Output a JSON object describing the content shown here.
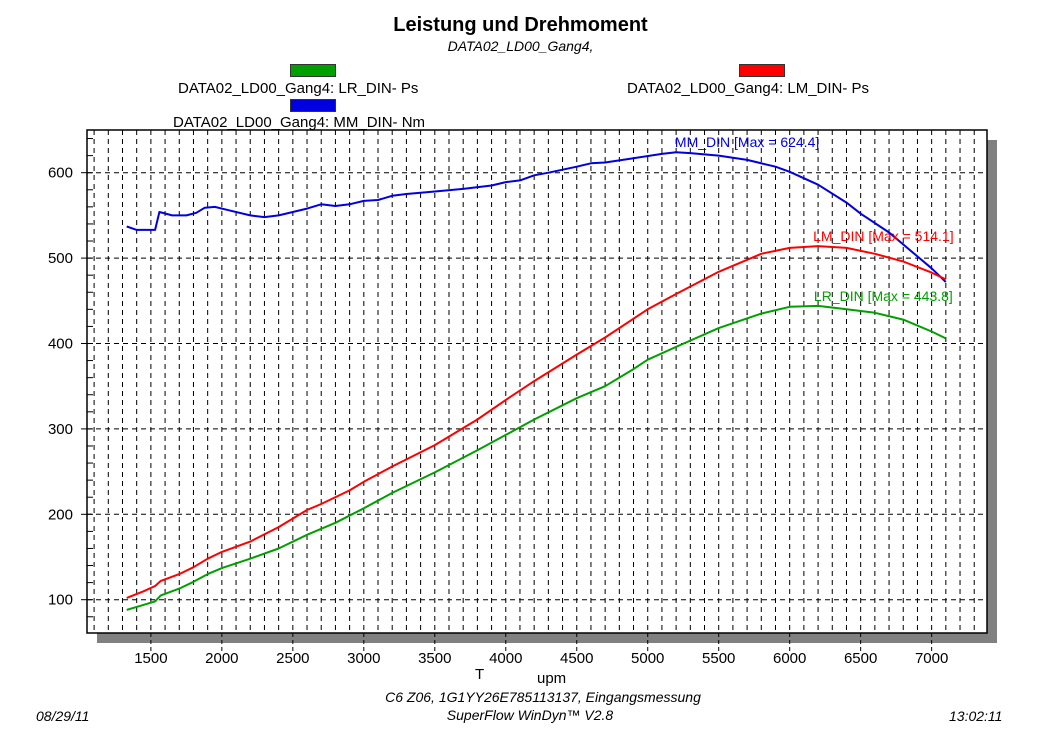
{
  "header": {
    "title": "Leistung und Drehmoment",
    "subtitle": "DATA02_LD00_Gang4,"
  },
  "legend": [
    {
      "label": "DATA02_LD00_Gang4: LR_DIN-  Ps",
      "color": "#00a000"
    },
    {
      "label": "DATA02_LD00_Gang4: LM_DIN-  Ps",
      "color": "#ff0000"
    },
    {
      "label": "DATA02_LD00_Gang4: MM_DIN-  Nm",
      "color": "#0000e0"
    }
  ],
  "footer": {
    "line1": "C6 Z06, 1G1YY26E785113137, Eingangsmessung",
    "line2": "SuperFlow WinDyn™  V2.8",
    "date": "08/29/11",
    "time": "13:02:11"
  },
  "chart_data": {
    "type": "line",
    "title": "Leistung und Drehmoment",
    "subtitle": "DATA02_LD00_Gang4,",
    "xlabel": "T     upm",
    "ylabel": "",
    "xlim": [
      1050,
      7390
    ],
    "ylim": [
      61,
      650
    ],
    "x_ticks": [
      1500,
      2000,
      2500,
      3000,
      3500,
      4000,
      4500,
      5000,
      5500,
      6000,
      6500,
      7000
    ],
    "y_ticks": [
      100,
      200,
      300,
      400,
      500,
      600
    ],
    "x_minor_step": 100,
    "y_minor_step": 20,
    "grid": true,
    "legend_position": "top",
    "series": [
      {
        "name": "MM_DIN",
        "legend": "DATA02_LD00_Gang4: MM_DIN-  Nm",
        "color": "#0000e0",
        "annotation": "MM_DIN [Max = 624.4]",
        "x": [
          1330,
          1400,
          1450,
          1530,
          1560,
          1650,
          1750,
          1820,
          1880,
          1950,
          2050,
          2200,
          2300,
          2400,
          2500,
          2600,
          2700,
          2800,
          2900,
          3000,
          3100,
          3200,
          3300,
          3500,
          3700,
          3900,
          4000,
          4100,
          4200,
          4300,
          4500,
          4600,
          4700,
          4900,
          5100,
          5200,
          5300,
          5500,
          5700,
          5900,
          6000,
          6200,
          6400,
          6500,
          6700,
          6900,
          7000,
          7100
        ],
        "y": [
          537,
          533,
          533,
          533,
          554,
          550,
          550,
          553,
          559,
          560,
          556,
          550,
          548,
          550,
          554,
          558,
          563,
          561,
          563,
          567,
          568,
          573,
          575,
          578,
          581,
          585,
          589,
          591,
          597,
          600,
          607,
          611,
          612,
          617,
          622,
          624,
          623,
          620,
          615,
          607,
          601,
          586,
          565,
          552,
          530,
          502,
          488,
          472
        ]
      },
      {
        "name": "LM_DIN",
        "legend": "DATA02_LD00_Gang4: LM_DIN-  Ps",
        "color": "#ff0000",
        "annotation": "LM_DIN [Max = 514.1]",
        "x": [
          1330,
          1450,
          1530,
          1570,
          1700,
          1800,
          1900,
          2000,
          2200,
          2400,
          2600,
          2700,
          2900,
          3000,
          3200,
          3500,
          3800,
          4000,
          4200,
          4500,
          4700,
          5000,
          5200,
          5500,
          5800,
          6000,
          6200,
          6400,
          6600,
          6800,
          7000,
          7100
        ],
        "y": [
          102,
          110,
          116,
          122,
          130,
          138,
          148,
          156,
          168,
          185,
          205,
          212,
          228,
          238,
          256,
          281,
          311,
          334,
          356,
          387,
          407,
          440,
          458,
          484,
          505,
          512,
          514,
          512,
          505,
          496,
          483,
          475
        ]
      },
      {
        "name": "LR_DIN",
        "legend": "DATA02_LD00_Gang4: LR_DIN-  Ps",
        "color": "#00a000",
        "annotation": "LR_DIN [Max = 443.8]",
        "x": [
          1330,
          1450,
          1530,
          1570,
          1700,
          1800,
          1900,
          2000,
          2200,
          2400,
          2600,
          2800,
          3000,
          3200,
          3500,
          3800,
          4000,
          4200,
          4500,
          4700,
          4900,
          5000,
          5200,
          5500,
          5800,
          6000,
          6200,
          6400,
          6600,
          6800,
          7000,
          7100
        ],
        "y": [
          88,
          94,
          98,
          105,
          113,
          121,
          130,
          137,
          148,
          160,
          176,
          190,
          207,
          225,
          249,
          275,
          293,
          311,
          336,
          350,
          370,
          381,
          396,
          418,
          435,
          443,
          444,
          440,
          436,
          428,
          414,
          406
        ]
      }
    ]
  }
}
